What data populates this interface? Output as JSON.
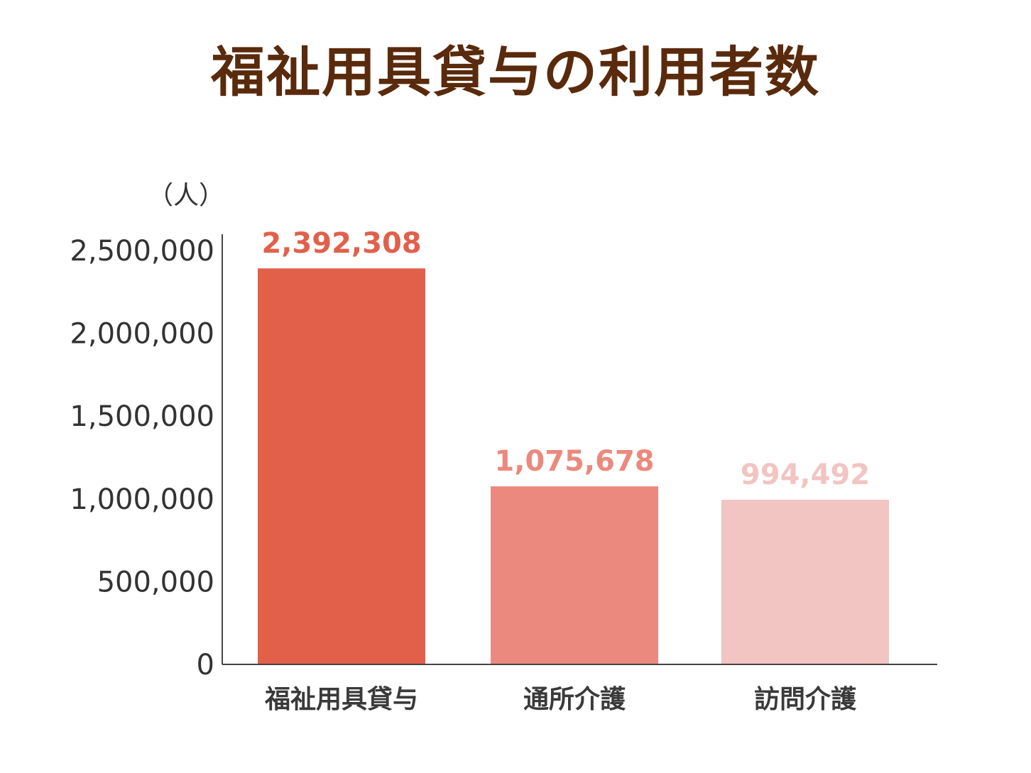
{
  "chart_data": {
    "type": "bar",
    "title": "福祉用具貸与の利用者数",
    "unit_label": "（人）",
    "categories": [
      "福祉用具貸与",
      "通所介護",
      "訪問介護"
    ],
    "values": [
      2392308,
      1075678,
      994492
    ],
    "value_labels": [
      "2,392,308",
      "1,075,678",
      "994,492"
    ],
    "colors": [
      "#e2604a",
      "#eb897e",
      "#f2c4c2"
    ],
    "ylim": [
      0,
      2500000
    ],
    "yticks": [
      0,
      500000,
      1000000,
      1500000,
      2000000,
      2500000
    ],
    "ytick_labels": [
      "0",
      "500,000",
      "1,000,000",
      "1,500,000",
      "2,000,000",
      "2,500,000"
    ],
    "grid": false,
    "legend": "none"
  }
}
